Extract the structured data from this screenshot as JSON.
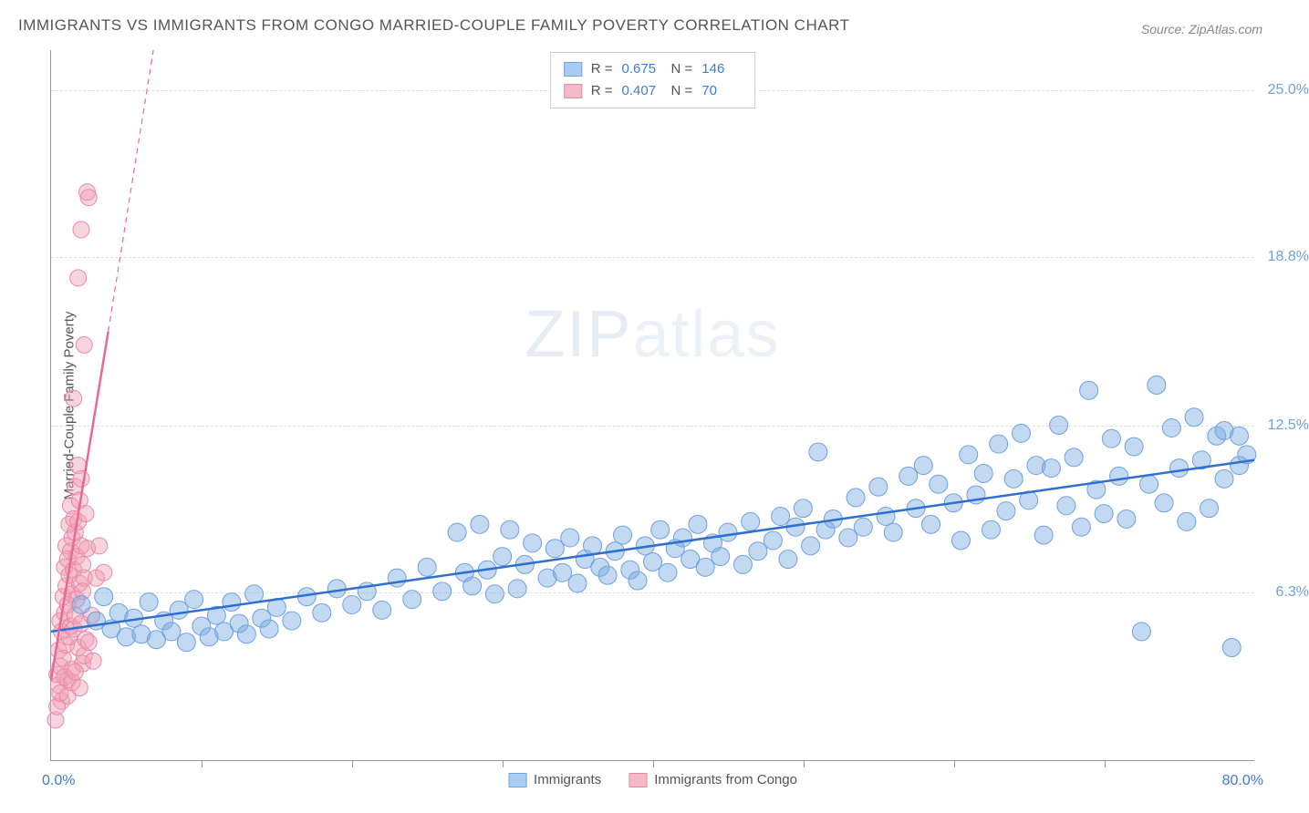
{
  "title": "IMMIGRANTS VS IMMIGRANTS FROM CONGO MARRIED-COUPLE FAMILY POVERTY CORRELATION CHART",
  "source_label": "Source: ZipAtlas.com",
  "watermark": {
    "bold": "ZIP",
    "light": "atlas"
  },
  "axes": {
    "y_title": "Married-Couple Family Poverty",
    "x_min": 0.0,
    "x_max": 80.0,
    "y_min": 0.0,
    "y_max": 26.5,
    "x_corner_min_label": "0.0%",
    "x_corner_max_label": "80.0%",
    "x_label_color": "#3b7dd8",
    "y_ticks": [
      {
        "value": 6.3,
        "label": "6.3%"
      },
      {
        "value": 12.5,
        "label": "12.5%"
      },
      {
        "value": 18.8,
        "label": "18.8%"
      },
      {
        "value": 25.0,
        "label": "25.0%"
      }
    ],
    "y_label_color": "#6fa0e0",
    "x_tick_positions": [
      10,
      20,
      30,
      40,
      50,
      60,
      70
    ],
    "grid_color": "#dddddd"
  },
  "legend_top": {
    "rows": [
      {
        "swatch_fill": "#a9cdf2",
        "swatch_border": "#6fa0e0",
        "r": "0.675",
        "n": "146"
      },
      {
        "swatch_fill": "#f6b9c8",
        "swatch_border": "#e88aa5",
        "r": "0.407",
        "n": "70"
      }
    ],
    "r_prefix": "R  =",
    "n_prefix": "N  ="
  },
  "legend_bottom": {
    "items": [
      {
        "swatch_fill": "#a9cdf2",
        "swatch_border": "#6fa0e0",
        "label": "Immigrants"
      },
      {
        "swatch_fill": "#f6b9c8",
        "swatch_border": "#e88aa5",
        "label": "Immigrants from Congo"
      }
    ]
  },
  "series": {
    "blue": {
      "point_fill": "rgba(120,170,225,0.45)",
      "point_stroke": "#6fa0e0",
      "point_radius": 10,
      "trend_color": "#2f6fd0",
      "trend_width": 2.5,
      "trend": {
        "x1": 0,
        "y1": 4.8,
        "x2": 80,
        "y2": 11.2
      },
      "points": [
        [
          2,
          5.8
        ],
        [
          3,
          5.2
        ],
        [
          3.5,
          6.1
        ],
        [
          4,
          4.9
        ],
        [
          4.5,
          5.5
        ],
        [
          5,
          4.6
        ],
        [
          5.5,
          5.3
        ],
        [
          6,
          4.7
        ],
        [
          6.5,
          5.9
        ],
        [
          7,
          4.5
        ],
        [
          7.5,
          5.2
        ],
        [
          8,
          4.8
        ],
        [
          8.5,
          5.6
        ],
        [
          9,
          4.4
        ],
        [
          9.5,
          6.0
        ],
        [
          10,
          5.0
        ],
        [
          10.5,
          4.6
        ],
        [
          11,
          5.4
        ],
        [
          11.5,
          4.8
        ],
        [
          12,
          5.9
        ],
        [
          12.5,
          5.1
        ],
        [
          13,
          4.7
        ],
        [
          13.5,
          6.2
        ],
        [
          14,
          5.3
        ],
        [
          14.5,
          4.9
        ],
        [
          15,
          5.7
        ],
        [
          16,
          5.2
        ],
        [
          17,
          6.1
        ],
        [
          18,
          5.5
        ],
        [
          19,
          6.4
        ],
        [
          20,
          5.8
        ],
        [
          21,
          6.3
        ],
        [
          22,
          5.6
        ],
        [
          23,
          6.8
        ],
        [
          24,
          6.0
        ],
        [
          25,
          7.2
        ],
        [
          26,
          6.3
        ],
        [
          27,
          8.5
        ],
        [
          27.5,
          7.0
        ],
        [
          28,
          6.5
        ],
        [
          28.5,
          8.8
        ],
        [
          29,
          7.1
        ],
        [
          29.5,
          6.2
        ],
        [
          30,
          7.6
        ],
        [
          30.5,
          8.6
        ],
        [
          31,
          6.4
        ],
        [
          31.5,
          7.3
        ],
        [
          32,
          8.1
        ],
        [
          33,
          6.8
        ],
        [
          33.5,
          7.9
        ],
        [
          34,
          7.0
        ],
        [
          34.5,
          8.3
        ],
        [
          35,
          6.6
        ],
        [
          35.5,
          7.5
        ],
        [
          36,
          8.0
        ],
        [
          36.5,
          7.2
        ],
        [
          37,
          6.9
        ],
        [
          37.5,
          7.8
        ],
        [
          38,
          8.4
        ],
        [
          38.5,
          7.1
        ],
        [
          39,
          6.7
        ],
        [
          39.5,
          8.0
        ],
        [
          40,
          7.4
        ],
        [
          40.5,
          8.6
        ],
        [
          41,
          7.0
        ],
        [
          41.5,
          7.9
        ],
        [
          42,
          8.3
        ],
        [
          42.5,
          7.5
        ],
        [
          43,
          8.8
        ],
        [
          43.5,
          7.2
        ],
        [
          44,
          8.1
        ],
        [
          44.5,
          7.6
        ],
        [
          45,
          8.5
        ],
        [
          46,
          7.3
        ],
        [
          46.5,
          8.9
        ],
        [
          47,
          7.8
        ],
        [
          48,
          8.2
        ],
        [
          48.5,
          9.1
        ],
        [
          49,
          7.5
        ],
        [
          49.5,
          8.7
        ],
        [
          50,
          9.4
        ],
        [
          50.5,
          8.0
        ],
        [
          51,
          11.5
        ],
        [
          51.5,
          8.6
        ],
        [
          52,
          9.0
        ],
        [
          53,
          8.3
        ],
        [
          53.5,
          9.8
        ],
        [
          54,
          8.7
        ],
        [
          55,
          10.2
        ],
        [
          55.5,
          9.1
        ],
        [
          56,
          8.5
        ],
        [
          57,
          10.6
        ],
        [
          57.5,
          9.4
        ],
        [
          58,
          11.0
        ],
        [
          58.5,
          8.8
        ],
        [
          59,
          10.3
        ],
        [
          60,
          9.6
        ],
        [
          60.5,
          8.2
        ],
        [
          61,
          11.4
        ],
        [
          61.5,
          9.9
        ],
        [
          62,
          10.7
        ],
        [
          62.5,
          8.6
        ],
        [
          63,
          11.8
        ],
        [
          63.5,
          9.3
        ],
        [
          64,
          10.5
        ],
        [
          64.5,
          12.2
        ],
        [
          65,
          9.7
        ],
        [
          65.5,
          11.0
        ],
        [
          66,
          8.4
        ],
        [
          66.5,
          10.9
        ],
        [
          67,
          12.5
        ],
        [
          67.5,
          9.5
        ],
        [
          68,
          11.3
        ],
        [
          68.5,
          8.7
        ],
        [
          69,
          13.8
        ],
        [
          69.5,
          10.1
        ],
        [
          70,
          9.2
        ],
        [
          70.5,
          12.0
        ],
        [
          71,
          10.6
        ],
        [
          71.5,
          9.0
        ],
        [
          72,
          11.7
        ],
        [
          72.5,
          4.8
        ],
        [
          73,
          10.3
        ],
        [
          73.5,
          14.0
        ],
        [
          74,
          9.6
        ],
        [
          74.5,
          12.4
        ],
        [
          75,
          10.9
        ],
        [
          75.5,
          8.9
        ],
        [
          76,
          12.8
        ],
        [
          76.5,
          11.2
        ],
        [
          77,
          9.4
        ],
        [
          77.5,
          12.1
        ],
        [
          78,
          10.5
        ],
        [
          78,
          12.3
        ],
        [
          78.5,
          4.2
        ],
        [
          79,
          11.0
        ],
        [
          79,
          12.1
        ],
        [
          79.5,
          11.4
        ]
      ]
    },
    "pink": {
      "point_fill": "rgba(240,160,185,0.45)",
      "point_stroke": "#e88aa5",
      "point_radius": 9,
      "trend_color": "#e86a94",
      "trend_width": 2.5,
      "trend_solid": {
        "x1": 0,
        "y1": 3.0,
        "x2": 3.8,
        "y2": 16.0
      },
      "trend_dash": {
        "x1": 3.8,
        "y1": 16.0,
        "x2": 6.8,
        "y2": 26.5
      },
      "points": [
        [
          0.3,
          1.5
        ],
        [
          0.4,
          3.2
        ],
        [
          0.5,
          2.8
        ],
        [
          0.5,
          4.1
        ],
        [
          0.6,
          3.5
        ],
        [
          0.6,
          5.2
        ],
        [
          0.7,
          2.2
        ],
        [
          0.7,
          4.8
        ],
        [
          0.8,
          6.1
        ],
        [
          0.8,
          3.8
        ],
        [
          0.9,
          5.5
        ],
        [
          0.9,
          7.2
        ],
        [
          1.0,
          4.3
        ],
        [
          1.0,
          6.5
        ],
        [
          1.0,
          8.0
        ],
        [
          1.1,
          3.0
        ],
        [
          1.1,
          5.8
        ],
        [
          1.1,
          7.5
        ],
        [
          1.2,
          4.6
        ],
        [
          1.2,
          6.9
        ],
        [
          1.2,
          8.8
        ],
        [
          1.3,
          5.0
        ],
        [
          1.3,
          7.8
        ],
        [
          1.3,
          9.5
        ],
        [
          1.4,
          3.4
        ],
        [
          1.4,
          6.2
        ],
        [
          1.4,
          8.3
        ],
        [
          1.5,
          4.9
        ],
        [
          1.5,
          7.1
        ],
        [
          1.5,
          9.0
        ],
        [
          1.6,
          5.4
        ],
        [
          1.6,
          8.5
        ],
        [
          1.6,
          10.2
        ],
        [
          1.7,
          6.0
        ],
        [
          1.7,
          7.6
        ],
        [
          1.8,
          4.2
        ],
        [
          1.8,
          8.9
        ],
        [
          1.8,
          11.0
        ],
        [
          1.9,
          6.6
        ],
        [
          1.9,
          9.7
        ],
        [
          2.0,
          5.1
        ],
        [
          2.0,
          8.0
        ],
        [
          2.0,
          10.5
        ],
        [
          2.1,
          7.3
        ],
        [
          2.1,
          3.6
        ],
        [
          2.2,
          6.8
        ],
        [
          2.2,
          15.5
        ],
        [
          2.3,
          4.5
        ],
        [
          2.3,
          9.2
        ],
        [
          2.4,
          7.9
        ],
        [
          0.4,
          2.0
        ],
        [
          0.6,
          2.5
        ],
        [
          0.9,
          3.1
        ],
        [
          1.1,
          2.4
        ],
        [
          1.4,
          2.9
        ],
        [
          1.6,
          3.3
        ],
        [
          1.9,
          2.7
        ],
        [
          2.2,
          3.9
        ],
        [
          2.5,
          4.4
        ],
        [
          2.8,
          3.7
        ],
        [
          1.5,
          13.5
        ],
        [
          1.8,
          18.0
        ],
        [
          2.0,
          19.8
        ],
        [
          2.4,
          21.2
        ],
        [
          2.5,
          21.0
        ],
        [
          2.1,
          6.3
        ],
        [
          2.7,
          5.4
        ],
        [
          3.0,
          6.8
        ],
        [
          3.2,
          8.0
        ],
        [
          3.5,
          7.0
        ]
      ]
    }
  }
}
